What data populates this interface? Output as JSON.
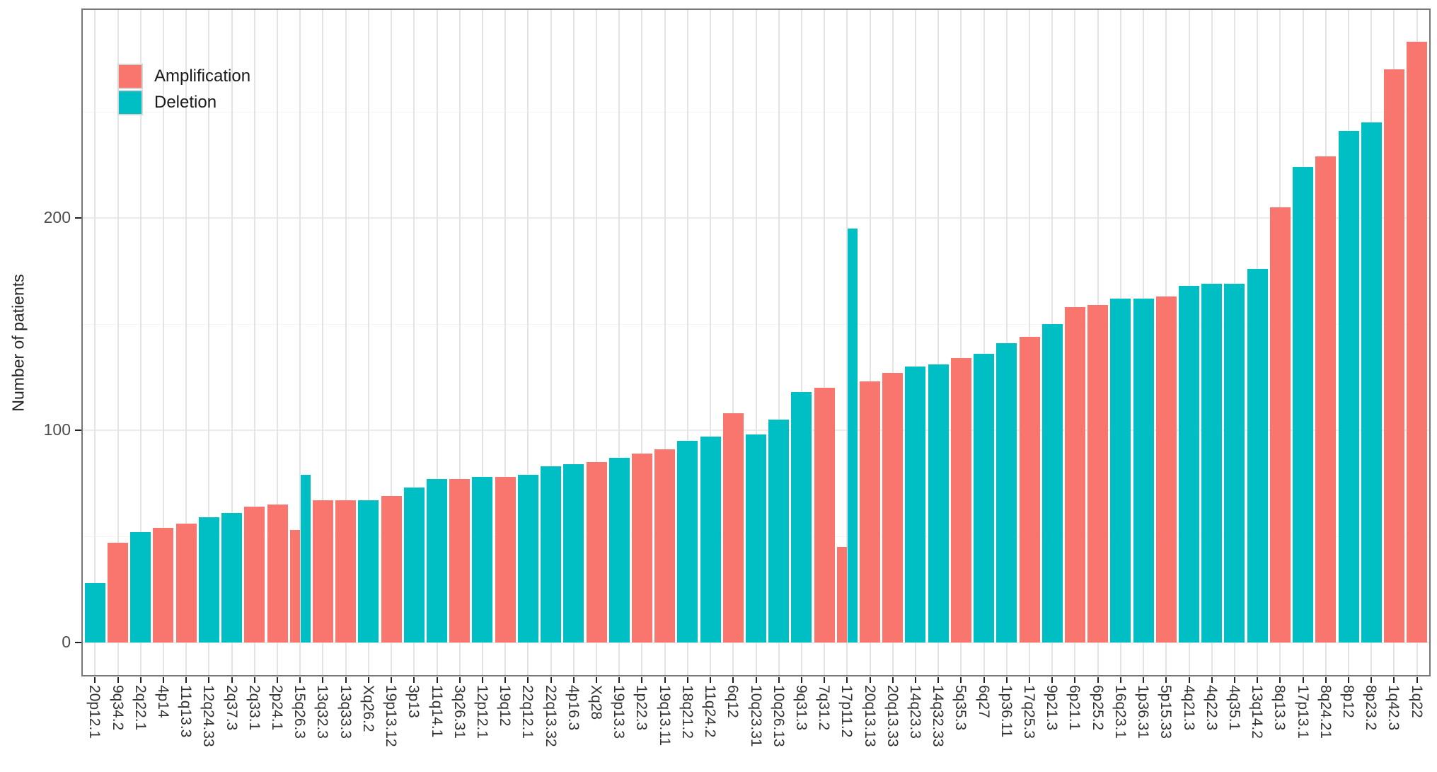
{
  "chart_data": {
    "type": "bar",
    "title": "",
    "xlabel": "",
    "ylabel": "Number of patients",
    "ylim": [
      0,
      295
    ],
    "yticks": [
      0,
      100,
      200
    ],
    "grid": "light vertical line per category; horizontal majors at 100 and 200 with faint minors",
    "legend_position": "top-left-inside",
    "x_tick_label_rotation": 90,
    "legend": [
      {
        "label": "Amplification",
        "color": "#F8766D"
      },
      {
        "label": "Deletion",
        "color": "#00BFC4"
      }
    ],
    "series_colors": {
      "Amplification": "#F8766D",
      "Deletion": "#00BFC4"
    },
    "categories": [
      "20p12.1",
      "9q34.2",
      "2q22.1",
      "4p14",
      "11q13.3",
      "12q24.33",
      "2q37.3",
      "2q33.1",
      "2p24.1",
      "15q26.3",
      "13q32.3",
      "13q33.3",
      "Xq26.2",
      "19p13.12",
      "3p13",
      "11q14.1",
      "3q26.31",
      "12p12.1",
      "19q12",
      "22q12.1",
      "22q13.32",
      "4p16.3",
      "Xq28",
      "19p13.3",
      "1p22.3",
      "19q13.11",
      "18q21.2",
      "11q24.2",
      "6q12",
      "10q23.31",
      "10q26.13",
      "9q31.3",
      "7q31.2",
      "17p11.2",
      "20q13.13",
      "20q13.33",
      "14q23.3",
      "14q32.33",
      "5q35.3",
      "6q27",
      "1p36.11",
      "17q25.3",
      "9p21.3",
      "6p21.1",
      "6p25.2",
      "16q23.1",
      "1p36.31",
      "5p15.33",
      "4q21.3",
      "4q22.3",
      "4q35.1",
      "13q14.2",
      "8q13.3",
      "17p13.1",
      "8q24.21",
      "8p12",
      "8p23.2",
      "1q42.3",
      "1q22"
    ],
    "bars": [
      {
        "category": "20p12.1",
        "series": "Deletion",
        "value": 28
      },
      {
        "category": "9q34.2",
        "series": "Amplification",
        "value": 47
      },
      {
        "category": "2q22.1",
        "series": "Deletion",
        "value": 52
      },
      {
        "category": "4p14",
        "series": "Amplification",
        "value": 54
      },
      {
        "category": "11q13.3",
        "series": "Amplification",
        "value": 56
      },
      {
        "category": "12q24.33",
        "series": "Deletion",
        "value": 59
      },
      {
        "category": "2q37.3",
        "series": "Deletion",
        "value": 61
      },
      {
        "category": "2q33.1",
        "series": "Amplification",
        "value": 64
      },
      {
        "category": "2p24.1",
        "series": "Amplification",
        "value": 65
      },
      {
        "category": "15q26.3",
        "series": "Amplification",
        "value": 53
      },
      {
        "category": "15q26.3",
        "series": "Deletion",
        "value": 79
      },
      {
        "category": "13q32.3",
        "series": "Amplification",
        "value": 67
      },
      {
        "category": "13q33.3",
        "series": "Amplification",
        "value": 67
      },
      {
        "category": "Xq26.2",
        "series": "Deletion",
        "value": 67
      },
      {
        "category": "19p13.12",
        "series": "Amplification",
        "value": 69
      },
      {
        "category": "3p13",
        "series": "Deletion",
        "value": 73
      },
      {
        "category": "11q14.1",
        "series": "Deletion",
        "value": 77
      },
      {
        "category": "3q26.31",
        "series": "Amplification",
        "value": 77
      },
      {
        "category": "12p12.1",
        "series": "Deletion",
        "value": 78
      },
      {
        "category": "19q12",
        "series": "Amplification",
        "value": 78
      },
      {
        "category": "22q12.1",
        "series": "Deletion",
        "value": 79
      },
      {
        "category": "22q13.32",
        "series": "Deletion",
        "value": 83
      },
      {
        "category": "4p16.3",
        "series": "Deletion",
        "value": 84
      },
      {
        "category": "Xq28",
        "series": "Amplification",
        "value": 85
      },
      {
        "category": "19p13.3",
        "series": "Deletion",
        "value": 87
      },
      {
        "category": "1p22.3",
        "series": "Amplification",
        "value": 89
      },
      {
        "category": "19q13.11",
        "series": "Amplification",
        "value": 91
      },
      {
        "category": "18q21.2",
        "series": "Deletion",
        "value": 95
      },
      {
        "category": "11q24.2",
        "series": "Deletion",
        "value": 97
      },
      {
        "category": "6q12",
        "series": "Amplification",
        "value": 108
      },
      {
        "category": "10q23.31",
        "series": "Deletion",
        "value": 98
      },
      {
        "category": "10q26.13",
        "series": "Deletion",
        "value": 105
      },
      {
        "category": "9q31.3",
        "series": "Deletion",
        "value": 118
      },
      {
        "category": "7q31.2",
        "series": "Amplification",
        "value": 120
      },
      {
        "category": "17p11.2",
        "series": "Amplification",
        "value": 45
      },
      {
        "category": "17p11.2",
        "series": "Deletion",
        "value": 195
      },
      {
        "category": "20q13.13",
        "series": "Amplification",
        "value": 123
      },
      {
        "category": "20q13.33",
        "series": "Amplification",
        "value": 127
      },
      {
        "category": "14q23.3",
        "series": "Deletion",
        "value": 130
      },
      {
        "category": "14q32.33",
        "series": "Deletion",
        "value": 131
      },
      {
        "category": "5q35.3",
        "series": "Amplification",
        "value": 134
      },
      {
        "category": "6q27",
        "series": "Deletion",
        "value": 136
      },
      {
        "category": "1p36.11",
        "series": "Deletion",
        "value": 141
      },
      {
        "category": "17q25.3",
        "series": "Amplification",
        "value": 144
      },
      {
        "category": "9p21.3",
        "series": "Deletion",
        "value": 150
      },
      {
        "category": "6p21.1",
        "series": "Amplification",
        "value": 158
      },
      {
        "category": "6p25.2",
        "series": "Amplification",
        "value": 159
      },
      {
        "category": "16q23.1",
        "series": "Deletion",
        "value": 162
      },
      {
        "category": "1p36.31",
        "series": "Deletion",
        "value": 162
      },
      {
        "category": "5p15.33",
        "series": "Amplification",
        "value": 163
      },
      {
        "category": "4q21.3",
        "series": "Deletion",
        "value": 168
      },
      {
        "category": "4q22.3",
        "series": "Deletion",
        "value": 169
      },
      {
        "category": "4q35.1",
        "series": "Deletion",
        "value": 169
      },
      {
        "category": "13q14.2",
        "series": "Deletion",
        "value": 176
      },
      {
        "category": "8q13.3",
        "series": "Amplification",
        "value": 205
      },
      {
        "category": "17p13.1",
        "series": "Deletion",
        "value": 224
      },
      {
        "category": "8q24.21",
        "series": "Amplification",
        "value": 229
      },
      {
        "category": "8p12",
        "series": "Deletion",
        "value": 241
      },
      {
        "category": "8p23.2",
        "series": "Deletion",
        "value": 245
      },
      {
        "category": "1q42.3",
        "series": "Amplification",
        "value": 270
      },
      {
        "category": "1q22",
        "series": "Amplification",
        "value": 283
      }
    ]
  }
}
